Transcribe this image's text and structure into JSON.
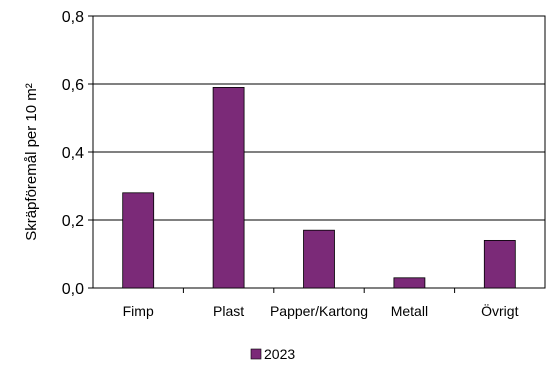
{
  "chart_data": {
    "type": "bar",
    "categories": [
      "Fimp",
      "Plast",
      "Papper/Kartong",
      "Metall",
      "Övrigt"
    ],
    "series": [
      {
        "name": "2023",
        "values": [
          0.28,
          0.59,
          0.17,
          0.03,
          0.14
        ],
        "color": "#7b2a78"
      }
    ],
    "ylabel": "Skräpföremål per 10 m²",
    "ylim": [
      0,
      0.8
    ],
    "yticks": [
      "0,0",
      "0,2",
      "0,4",
      "0,6",
      "0,8"
    ],
    "ytick_values": [
      0,
      0.2,
      0.4,
      0.6,
      0.8
    ],
    "grid": true,
    "legend": "bottom",
    "axis_color": "#000000"
  }
}
